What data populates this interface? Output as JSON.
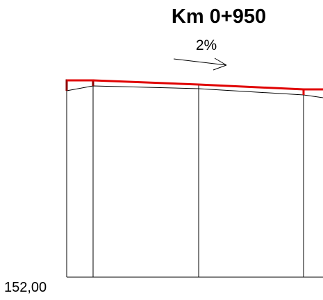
{
  "section": {
    "title": "Km 0+950",
    "slope_label": "2%",
    "datum_label": "152,00"
  },
  "colors": {
    "design_line": "#e00000",
    "curb": "#8b0000",
    "terrain_line": "#000000"
  }
}
